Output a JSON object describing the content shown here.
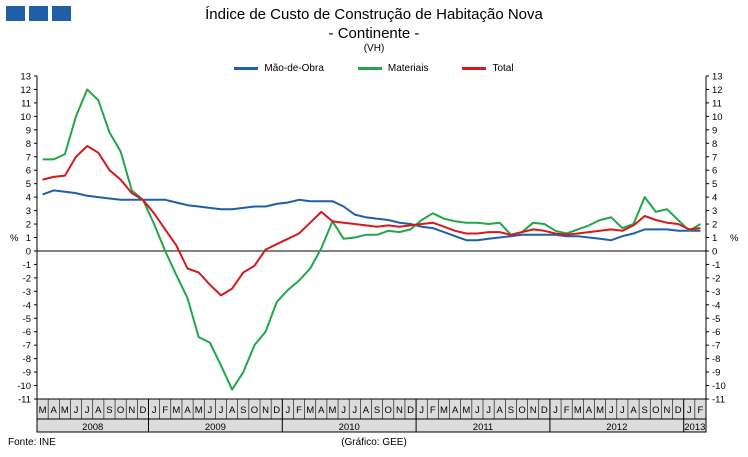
{
  "header": {
    "title": "Índice de Custo de Construção de Habitação Nova",
    "subtitle": "- Continente -",
    "note": "(VH)"
  },
  "footer": {
    "source": "Fonte: INE",
    "credit": "(Gráfico: GEE)"
  },
  "colors": {
    "mao_de_obra": "#1f5fa8",
    "materiais": "#22a64a",
    "total": "#d7191c",
    "logo": "#1f5fa8"
  },
  "chart_data": {
    "type": "line",
    "ylabel": "%",
    "ylim": [
      -11,
      13
    ],
    "yticks": [
      13,
      12,
      11,
      10,
      9,
      8,
      7,
      6,
      5,
      4,
      3,
      2,
      1,
      0,
      -1,
      -2,
      -3,
      -4,
      -5,
      -6,
      -7,
      -8,
      -9,
      -10,
      -11
    ],
    "grid": false,
    "legend_position": "top-center",
    "categories": [
      "M",
      "A",
      "M",
      "J",
      "J",
      "A",
      "S",
      "O",
      "N",
      "D",
      "J",
      "F",
      "M",
      "A",
      "M",
      "J",
      "J",
      "A",
      "S",
      "O",
      "N",
      "D",
      "J",
      "F",
      "M",
      "A",
      "M",
      "J",
      "J",
      "A",
      "S",
      "O",
      "N",
      "D",
      "J",
      "F",
      "M",
      "A",
      "M",
      "J",
      "J",
      "A",
      "S",
      "O",
      "N",
      "D",
      "J",
      "F",
      "M",
      "A",
      "M",
      "J",
      "J",
      "A",
      "S",
      "O",
      "N",
      "D",
      "J",
      "F"
    ],
    "years": [
      {
        "label": "2008",
        "start": 0,
        "count": 10
      },
      {
        "label": "2009",
        "start": 10,
        "count": 12
      },
      {
        "label": "2010",
        "start": 22,
        "count": 12
      },
      {
        "label": "2011",
        "start": 34,
        "count": 12
      },
      {
        "label": "2012",
        "start": 46,
        "count": 12
      },
      {
        "label": "2013",
        "start": 58,
        "count": 2
      }
    ],
    "series": [
      {
        "name": "Mão-de-Obra",
        "values": [
          4.2,
          4.5,
          4.4,
          4.3,
          4.1,
          4.0,
          3.9,
          3.8,
          3.8,
          3.8,
          3.8,
          3.8,
          3.6,
          3.4,
          3.3,
          3.2,
          3.1,
          3.1,
          3.2,
          3.3,
          3.3,
          3.5,
          3.6,
          3.8,
          3.7,
          3.7,
          3.7,
          3.3,
          2.7,
          2.5,
          2.4,
          2.3,
          2.1,
          2.0,
          1.8,
          1.7,
          1.4,
          1.1,
          0.8,
          0.8,
          0.9,
          1.0,
          1.1,
          1.2,
          1.2,
          1.2,
          1.2,
          1.1,
          1.1,
          1.0,
          0.9,
          0.8,
          1.1,
          1.3,
          1.6,
          1.6,
          1.6,
          1.5,
          1.5,
          1.5
        ]
      },
      {
        "name": "Materiais",
        "values": [
          6.8,
          6.8,
          7.2,
          10.0,
          12.0,
          11.2,
          8.8,
          7.4,
          4.5,
          3.8,
          2.0,
          0.0,
          -1.8,
          -3.5,
          -6.4,
          -6.8,
          -8.5,
          -10.3,
          -9.0,
          -7.0,
          -6.0,
          -3.8,
          -2.9,
          -2.2,
          -1.3,
          0.2,
          2.2,
          0.9,
          1.0,
          1.2,
          1.2,
          1.5,
          1.4,
          1.6,
          2.3,
          2.8,
          2.4,
          2.2,
          2.1,
          2.1,
          2.0,
          2.1,
          1.2,
          1.4,
          2.1,
          2.0,
          1.5,
          1.3,
          1.6,
          1.9,
          2.3,
          2.5,
          1.7,
          2.0,
          4.0,
          2.9,
          3.1,
          2.3,
          1.5,
          2.0
        ]
      },
      {
        "name": "Total",
        "values": [
          5.3,
          5.5,
          5.6,
          7.0,
          7.8,
          7.3,
          6.0,
          5.3,
          4.3,
          3.8,
          2.8,
          1.6,
          0.4,
          -1.3,
          -1.6,
          -2.5,
          -3.3,
          -2.8,
          -1.6,
          -1.1,
          0.1,
          0.5,
          0.9,
          1.3,
          2.1,
          2.9,
          2.2,
          2.1,
          2.0,
          1.9,
          1.8,
          1.9,
          1.8,
          1.9,
          2.0,
          2.1,
          1.8,
          1.5,
          1.3,
          1.3,
          1.4,
          1.4,
          1.2,
          1.4,
          1.6,
          1.5,
          1.3,
          1.2,
          1.3,
          1.4,
          1.5,
          1.6,
          1.5,
          1.9,
          2.6,
          2.3,
          2.1,
          2.0,
          1.6,
          1.7
        ]
      }
    ]
  }
}
